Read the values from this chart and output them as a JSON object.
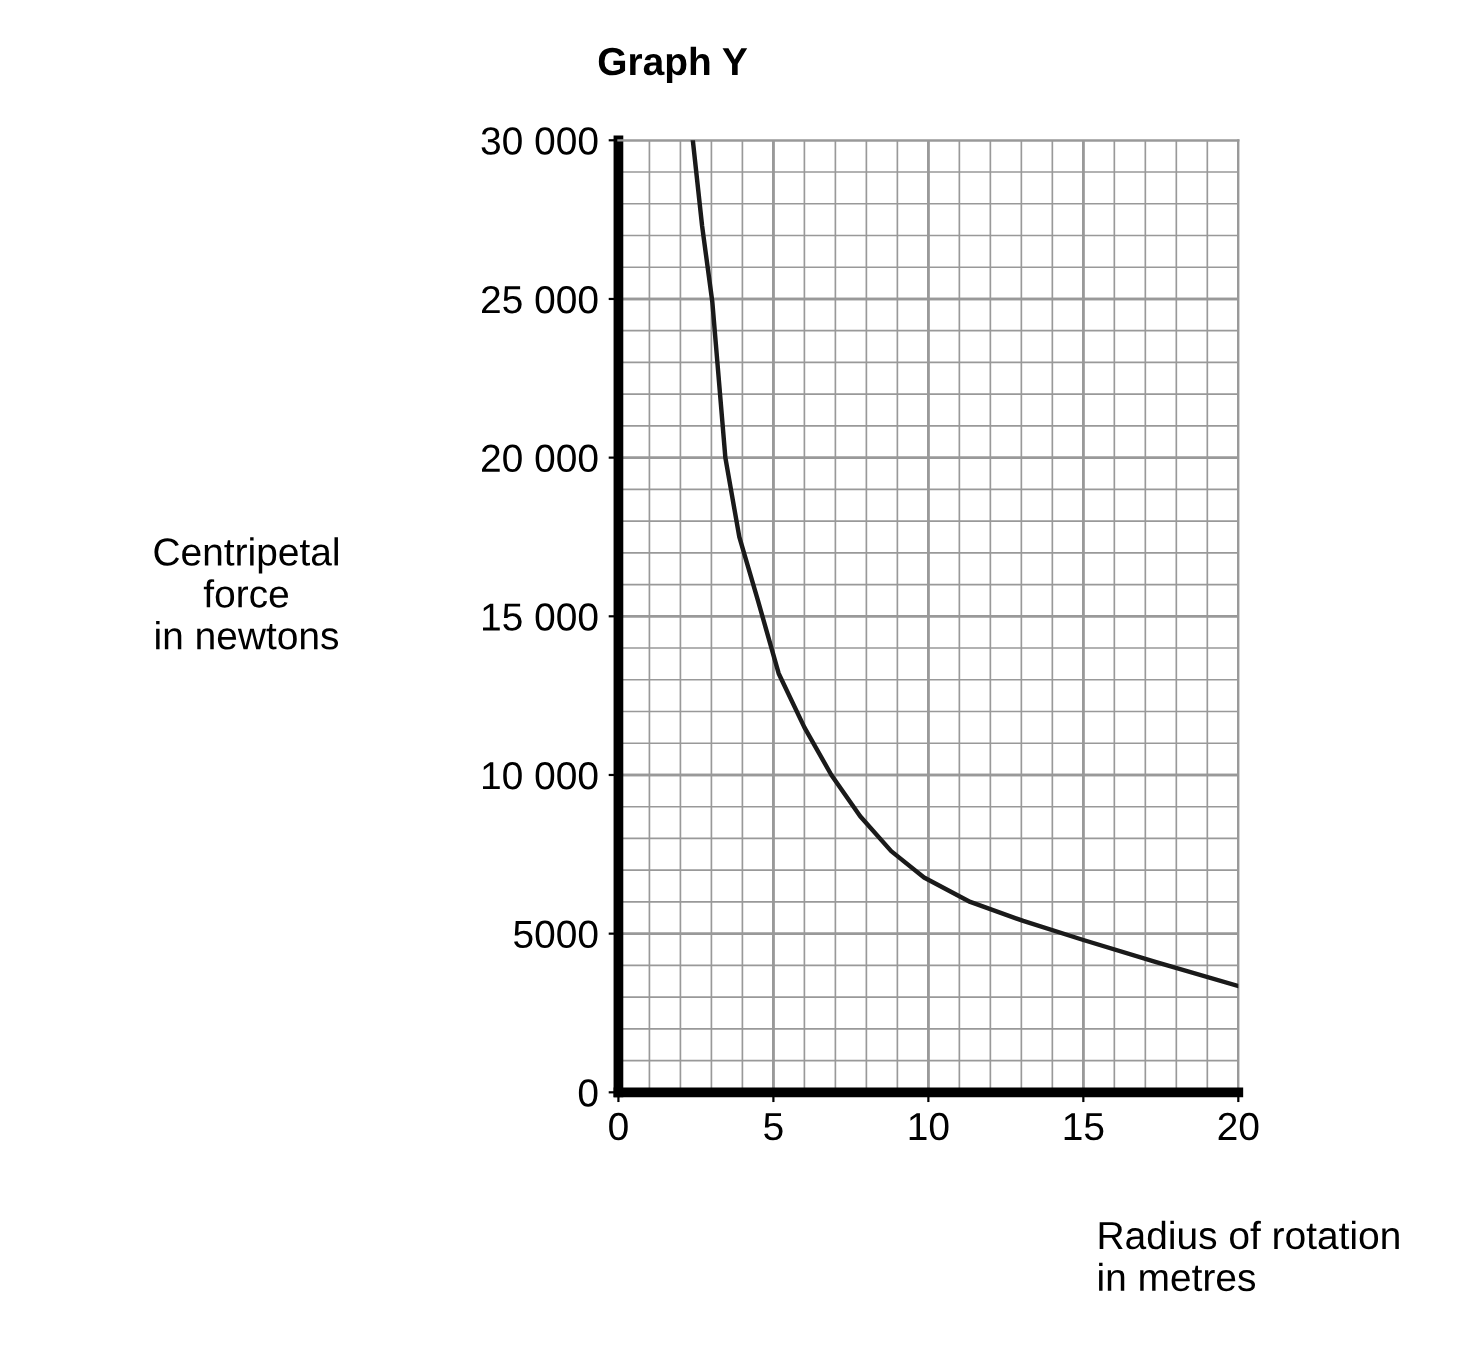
{
  "chart_data": {
    "type": "line",
    "title": "Graph Y",
    "xlabel": "Radius of rotation\nin metres",
    "ylabel": "Centripetal\nforce\nin newtons",
    "x": [
      2.4,
      2.7,
      3.03,
      3.45,
      3.9,
      4.5,
      5.17,
      6,
      6.87,
      7.8,
      8.8,
      9.86,
      11.35,
      13.06,
      15,
      17.35,
      20
    ],
    "series": [
      {
        "color": "#1a1a1a",
        "values": [
          30000,
          27300,
          24900,
          20000,
          17500,
          15500,
          13200,
          11500,
          10000,
          8700,
          7600,
          6770,
          6000,
          5400,
          4800,
          4100,
          3350
        ]
      }
    ],
    "xlim": [
      0,
      20
    ],
    "ylim": [
      0,
      30000
    ],
    "xticks": [
      0,
      5,
      10,
      15,
      20
    ],
    "yticks": [
      0,
      {
        "value": 5000,
        "label": "5000"
      },
      {
        "value": 10000,
        "label": "10 000"
      },
      {
        "value": 15000,
        "label": "15 000"
      },
      {
        "value": 20000,
        "label": "20 000"
      },
      {
        "value": 25000,
        "label": "25 000"
      },
      {
        "value": 30000,
        "label": "30 000"
      }
    ],
    "grid": true,
    "marker": "none",
    "line_style": "solid"
  }
}
